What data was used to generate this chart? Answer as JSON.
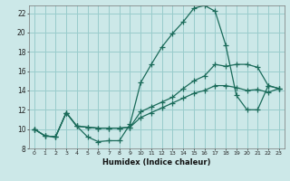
{
  "title": "",
  "xlabel": "Humidex (Indice chaleur)",
  "bg_color": "#cce8e8",
  "grid_color": "#99cccc",
  "line_color": "#1a6b5a",
  "xlim": [
    -0.5,
    23.5
  ],
  "ylim": [
    8,
    22.8
  ],
  "xticks": [
    0,
    1,
    2,
    3,
    4,
    5,
    6,
    7,
    8,
    9,
    10,
    11,
    12,
    13,
    14,
    15,
    16,
    17,
    18,
    19,
    20,
    21,
    22,
    23
  ],
  "yticks": [
    8,
    10,
    12,
    14,
    16,
    18,
    20,
    22
  ],
  "line1_x": [
    0,
    1,
    2,
    3,
    4,
    5,
    6,
    7,
    8,
    9,
    10,
    11,
    12,
    13,
    14,
    15,
    16,
    17,
    18,
    19,
    20,
    21,
    22,
    23
  ],
  "line1_y": [
    10.0,
    9.3,
    9.2,
    11.7,
    10.3,
    9.2,
    8.7,
    8.8,
    8.8,
    10.5,
    14.8,
    16.7,
    18.5,
    19.9,
    21.1,
    22.5,
    22.8,
    22.2,
    18.7,
    13.5,
    12.0,
    12.0,
    14.5,
    14.2
  ],
  "line2_x": [
    0,
    1,
    2,
    3,
    4,
    5,
    6,
    7,
    8,
    9,
    10,
    11,
    12,
    13,
    14,
    15,
    16,
    17,
    18,
    19,
    20,
    21,
    22,
    23
  ],
  "line2_y": [
    10.0,
    9.3,
    9.2,
    11.7,
    10.3,
    10.2,
    10.1,
    10.1,
    10.1,
    10.2,
    11.8,
    12.3,
    12.8,
    13.3,
    14.2,
    15.0,
    15.5,
    16.7,
    16.5,
    16.7,
    16.7,
    16.4,
    14.5,
    14.2
  ],
  "line3_x": [
    0,
    1,
    2,
    3,
    4,
    5,
    6,
    7,
    8,
    9,
    10,
    11,
    12,
    13,
    14,
    15,
    16,
    17,
    18,
    19,
    20,
    21,
    22,
    23
  ],
  "line3_y": [
    10.0,
    9.3,
    9.2,
    11.7,
    10.3,
    10.2,
    10.1,
    10.1,
    10.1,
    10.2,
    11.2,
    11.7,
    12.2,
    12.7,
    13.2,
    13.7,
    14.0,
    14.5,
    14.5,
    14.3,
    14.0,
    14.1,
    13.8,
    14.2
  ]
}
